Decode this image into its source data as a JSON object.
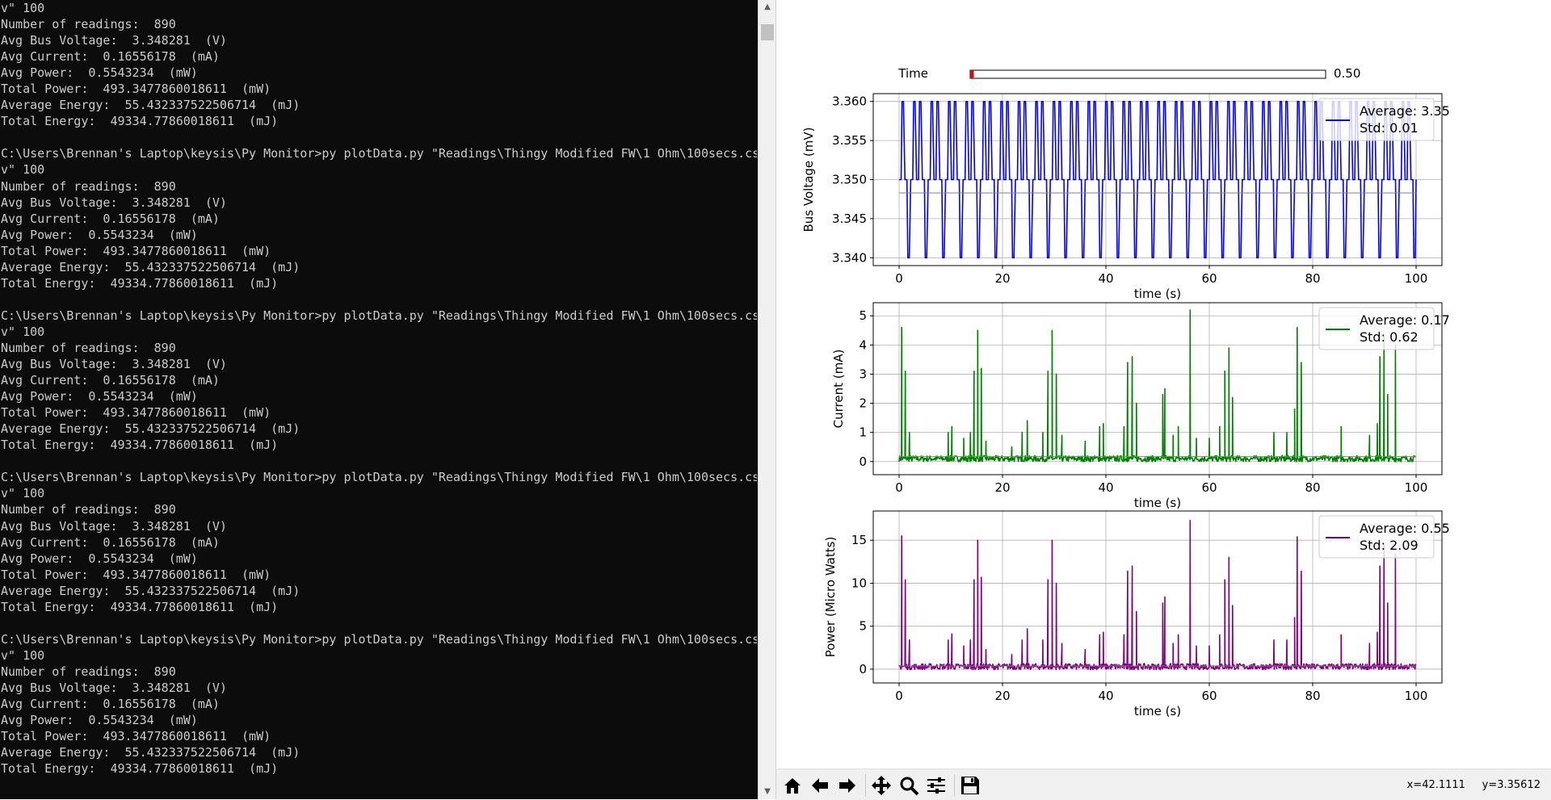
{
  "terminal": {
    "lines": [
      "v\" 100",
      "Number of readings:  890",
      "Avg Bus Voltage:  3.348281  (V)",
      "Avg Current:  0.16556178  (mA)",
      "Avg Power:  0.5543234  (mW)",
      "Total Power:  493.3477860018611  (mW)",
      "Average Energy:  55.432337522506714  (mJ)",
      "Total Energy:  49334.77860018611  (mJ)",
      "",
      "C:\\Users\\Brennan's Laptop\\keysis\\Py Monitor>py plotData.py \"Readings\\Thingy Modified FW\\1 Ohm\\100secs.cs",
      "v\" 100",
      "Number of readings:  890",
      "Avg Bus Voltage:  3.348281  (V)",
      "Avg Current:  0.16556178  (mA)",
      "Avg Power:  0.5543234  (mW)",
      "Total Power:  493.3477860018611  (mW)",
      "Average Energy:  55.432337522506714  (mJ)",
      "Total Energy:  49334.77860018611  (mJ)",
      "",
      "C:\\Users\\Brennan's Laptop\\keysis\\Py Monitor>py plotData.py \"Readings\\Thingy Modified FW\\1 Ohm\\100secs.cs",
      "v\" 100",
      "Number of readings:  890",
      "Avg Bus Voltage:  3.348281  (V)",
      "Avg Current:  0.16556178  (mA)",
      "Avg Power:  0.5543234  (mW)",
      "Total Power:  493.3477860018611  (mW)",
      "Average Energy:  55.432337522506714  (mJ)",
      "Total Energy:  49334.77860018611  (mJ)",
      "",
      "C:\\Users\\Brennan's Laptop\\keysis\\Py Monitor>py plotData.py \"Readings\\Thingy Modified FW\\1 Ohm\\100secs.cs",
      "v\" 100",
      "Number of readings:  890",
      "Avg Bus Voltage:  3.348281  (V)",
      "Avg Current:  0.16556178  (mA)",
      "Avg Power:  0.5543234  (mW)",
      "Total Power:  493.3477860018611  (mW)",
      "Average Energy:  55.432337522506714  (mJ)",
      "Total Energy:  49334.77860018611  (mJ)",
      "",
      "C:\\Users\\Brennan's Laptop\\keysis\\Py Monitor>py plotData.py \"Readings\\Thingy Modified FW\\1 Ohm\\100secs.cs",
      "v\" 100",
      "Number of readings:  890",
      "Avg Bus Voltage:  3.348281  (V)",
      "Avg Current:  0.16556178  (mA)",
      "Avg Power:  0.5543234  (mW)",
      "Total Power:  493.3477860018611  (mW)",
      "Average Energy:  55.432337522506714  (mJ)",
      "Total Energy:  49334.77860018611  (mJ)"
    ]
  },
  "slider": {
    "label": "Time",
    "value_text": "0.50",
    "fill_fraction": 0.01,
    "color": "#e8000b"
  },
  "chart_data": [
    {
      "type": "line",
      "ylabel": "Bus Voltage (mV)",
      "xlabel": "time (s)",
      "xlim": [
        -5,
        105
      ],
      "ylim": [
        3.339,
        3.361
      ],
      "xticks": [
        0,
        20,
        40,
        60,
        80,
        100
      ],
      "yticks": [
        3.34,
        3.345,
        3.35,
        3.355,
        3.36
      ],
      "ytick_labels": [
        "3.340",
        "3.345",
        "3.350",
        "3.355",
        "3.360"
      ],
      "grid": true,
      "color": "#0000ff",
      "legend": [
        "Average: 3.35",
        "Std: 0.01"
      ],
      "legend_placement": "upper right",
      "baseline": 3.35,
      "pattern": {
        "levels": [
          3.34,
          3.35,
          3.36
        ],
        "period_s": 1.125
      }
    },
    {
      "type": "line",
      "ylabel": "Current (mA)",
      "xlabel": "time (s)",
      "xlim": [
        -5,
        105
      ],
      "ylim": [
        -0.45,
        5.45
      ],
      "xticks": [
        0,
        20,
        40,
        60,
        80,
        100
      ],
      "yticks": [
        0,
        1,
        2,
        3,
        4,
        5
      ],
      "ytick_labels": [
        "0",
        "1",
        "2",
        "3",
        "4",
        "5"
      ],
      "grid": true,
      "color": "#008000",
      "legend": [
        "Average: 0.17",
        "Std: 0.62"
      ],
      "legend_placement": "upper right",
      "baseline": 0.1,
      "spikes": [
        [
          0.5,
          4.6
        ],
        [
          1.2,
          3.1
        ],
        [
          2.0,
          1.0
        ],
        [
          9.5,
          1.0
        ],
        [
          10.2,
          1.2
        ],
        [
          12.5,
          0.8
        ],
        [
          13.8,
          1.0
        ],
        [
          14.5,
          3.1
        ],
        [
          15.2,
          4.5
        ],
        [
          15.9,
          3.2
        ],
        [
          16.8,
          0.7
        ],
        [
          21.8,
          0.5
        ],
        [
          23.8,
          1.0
        ],
        [
          24.8,
          1.4
        ],
        [
          27.8,
          1.0
        ],
        [
          28.8,
          3.1
        ],
        [
          29.6,
          4.5
        ],
        [
          30.4,
          3.0
        ],
        [
          31.5,
          0.9
        ],
        [
          36.0,
          0.7
        ],
        [
          38.8,
          1.2
        ],
        [
          39.5,
          1.3
        ],
        [
          43.5,
          1.2
        ],
        [
          44.2,
          3.4
        ],
        [
          45.1,
          3.6
        ],
        [
          45.9,
          2.0
        ],
        [
          51.0,
          2.3
        ],
        [
          51.4,
          2.5
        ],
        [
          53.0,
          0.9
        ],
        [
          54.0,
          1.2
        ],
        [
          56.3,
          5.2
        ],
        [
          57.5,
          0.8
        ],
        [
          60.0,
          0.8
        ],
        [
          62.0,
          1.2
        ],
        [
          63.0,
          3.1
        ],
        [
          63.8,
          3.9
        ],
        [
          64.5,
          2.2
        ],
        [
          72.5,
          1.0
        ],
        [
          75.0,
          1.0
        ],
        [
          76.5,
          1.8
        ],
        [
          77.0,
          4.6
        ],
        [
          77.8,
          3.4
        ],
        [
          85.5,
          1.2
        ],
        [
          91.0,
          0.9
        ],
        [
          92.5,
          1.3
        ],
        [
          93.0,
          3.6
        ],
        [
          93.8,
          4.3
        ],
        [
          94.5,
          2.3
        ],
        [
          96.0,
          4.0
        ]
      ]
    },
    {
      "type": "line",
      "ylabel": "Power (Micro Watts)",
      "xlabel": "time (s)",
      "xlim": [
        -5,
        105
      ],
      "ylim": [
        -1.6,
        18.4
      ],
      "xticks": [
        0,
        20,
        40,
        60,
        80,
        100
      ],
      "yticks": [
        0,
        5,
        10,
        15
      ],
      "ytick_labels": [
        "0",
        "5",
        "10",
        "15"
      ],
      "grid": true,
      "color": "#800080",
      "legend": [
        "Average: 0.55",
        "Std: 2.09"
      ],
      "legend_placement": "upper right",
      "baseline": 0.3,
      "spikes": [
        [
          0.5,
          15.5
        ],
        [
          1.2,
          10.4
        ],
        [
          2.0,
          3.4
        ],
        [
          9.5,
          3.4
        ],
        [
          10.2,
          4.1
        ],
        [
          12.5,
          2.7
        ],
        [
          13.8,
          3.4
        ],
        [
          14.5,
          10.4
        ],
        [
          15.2,
          15.0
        ],
        [
          15.9,
          10.7
        ],
        [
          16.8,
          2.3
        ],
        [
          21.8,
          1.7
        ],
        [
          23.8,
          3.4
        ],
        [
          24.8,
          4.7
        ],
        [
          27.8,
          3.4
        ],
        [
          28.8,
          10.4
        ],
        [
          29.6,
          15.0
        ],
        [
          30.4,
          10.0
        ],
        [
          31.5,
          3.0
        ],
        [
          36.0,
          2.3
        ],
        [
          38.8,
          4.0
        ],
        [
          39.5,
          4.3
        ],
        [
          43.5,
          4.0
        ],
        [
          44.2,
          11.4
        ],
        [
          45.1,
          12.0
        ],
        [
          45.9,
          6.7
        ],
        [
          51.0,
          7.7
        ],
        [
          51.4,
          8.4
        ],
        [
          53.0,
          3.0
        ],
        [
          54.0,
          4.0
        ],
        [
          56.3,
          17.3
        ],
        [
          57.5,
          2.7
        ],
        [
          60.0,
          2.7
        ],
        [
          62.0,
          4.0
        ],
        [
          63.0,
          10.4
        ],
        [
          63.8,
          13.0
        ],
        [
          64.5,
          7.4
        ],
        [
          72.5,
          3.4
        ],
        [
          75.0,
          3.4
        ],
        [
          76.5,
          6.0
        ],
        [
          77.0,
          15.4
        ],
        [
          77.8,
          11.4
        ],
        [
          85.5,
          4.0
        ],
        [
          91.0,
          3.0
        ],
        [
          92.5,
          4.3
        ],
        [
          93.0,
          12.0
        ],
        [
          93.8,
          14.4
        ],
        [
          94.5,
          7.7
        ],
        [
          96.0,
          13.4
        ]
      ]
    }
  ],
  "toolbar": {
    "buttons": [
      {
        "name": "home-button",
        "icon": "home-icon",
        "tooltip": "Reset original view"
      },
      {
        "name": "back-button",
        "icon": "arrow-left-icon",
        "tooltip": "Back"
      },
      {
        "name": "forward-button",
        "icon": "arrow-right-icon",
        "tooltip": "Forward"
      },
      {
        "name": "pan-button",
        "icon": "move-icon",
        "tooltip": "Pan"
      },
      {
        "name": "zoom-button",
        "icon": "magnifier-icon",
        "tooltip": "Zoom"
      },
      {
        "name": "subplots-button",
        "icon": "sliders-icon",
        "tooltip": "Configure subplots"
      },
      {
        "name": "save-button",
        "icon": "floppy-disk-icon",
        "tooltip": "Save the figure"
      }
    ],
    "coord_x": "x=42.1111",
    "coord_y": "y=3.35612"
  }
}
